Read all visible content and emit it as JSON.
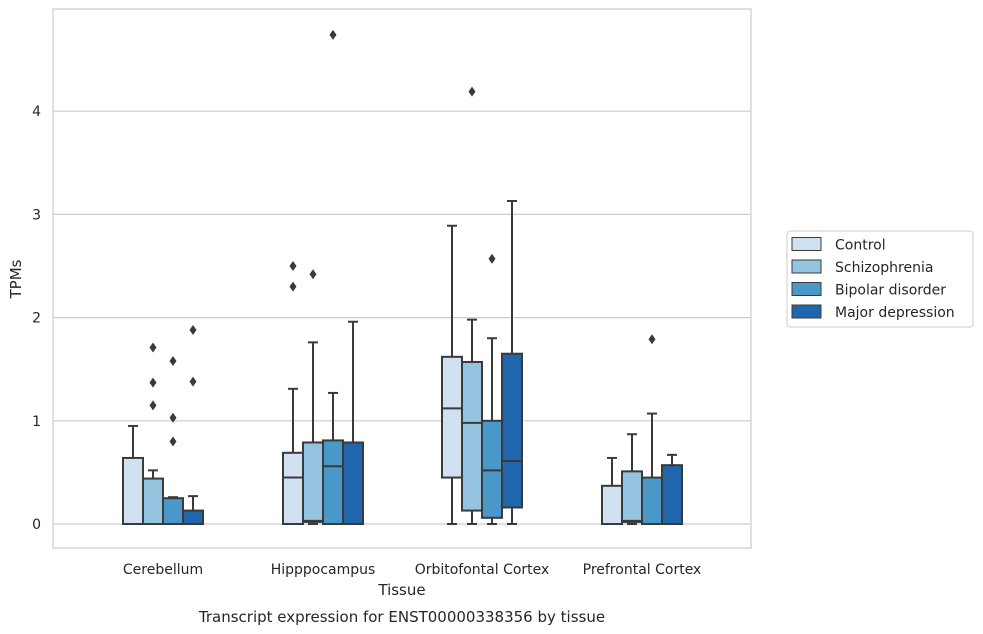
{
  "chart_data": {
    "type": "box",
    "title": "",
    "caption": "Transcript expression for ENST00000338356 by tissue",
    "xlabel": "Tissue",
    "ylabel": "TPMs",
    "ylim": [
      -0.22,
      5.0
    ],
    "yticks": [
      "0",
      "1",
      "2",
      "3",
      "4"
    ],
    "grid": "horizontal",
    "legend_position": "right",
    "categories": [
      "Cerebellum",
      "Hipppocampus",
      "Orbitofontal Cortex",
      "Prefrontal Cortex"
    ],
    "series": [
      {
        "name": "Control",
        "color": "#d0e1f2",
        "boxes": [
          {
            "whislo": 0,
            "q1": 0,
            "med": 0,
            "q3": 0.64,
            "whishi": 0.95,
            "fliers": []
          },
          {
            "whislo": 0,
            "q1": 0,
            "med": 0.45,
            "q3": 0.69,
            "whishi": 1.31,
            "fliers": [
              2.3,
              2.5
            ]
          },
          {
            "whislo": 0,
            "q1": 0.45,
            "med": 1.12,
            "q3": 1.62,
            "whishi": 2.89,
            "fliers": []
          },
          {
            "whislo": 0,
            "q1": 0,
            "med": 0,
            "q3": 0.37,
            "whishi": 0.64,
            "fliers": []
          }
        ]
      },
      {
        "name": "Schizophrenia",
        "color": "#94c4df",
        "boxes": [
          {
            "whislo": 0,
            "q1": 0,
            "med": 0,
            "q3": 0.44,
            "whishi": 0.52,
            "fliers": [
              1.15,
              1.37,
              1.71
            ]
          },
          {
            "whislo": 0,
            "q1": 0.02,
            "med": 0.03,
            "q3": 0.79,
            "whishi": 1.76,
            "fliers": [
              2.42
            ]
          },
          {
            "whislo": 0,
            "q1": 0.13,
            "med": 0.98,
            "q3": 1.57,
            "whishi": 1.98,
            "fliers": [
              4.19
            ]
          },
          {
            "whislo": 0,
            "q1": 0.02,
            "med": 0.03,
            "q3": 0.51,
            "whishi": 0.87,
            "fliers": []
          }
        ]
      },
      {
        "name": "Bipolar disorder",
        "color": "#4a98c9",
        "boxes": [
          {
            "whislo": 0,
            "q1": 0,
            "med": 0,
            "q3": 0.25,
            "whishi": 0.26,
            "fliers": [
              0.8,
              1.03,
              1.58
            ]
          },
          {
            "whislo": 0,
            "q1": 0,
            "med": 0.56,
            "q3": 0.81,
            "whishi": 1.27,
            "fliers": [
              4.74
            ]
          },
          {
            "whislo": 0,
            "q1": 0.06,
            "med": 0.52,
            "q3": 1.0,
            "whishi": 1.8,
            "fliers": [
              2.57
            ]
          },
          {
            "whislo": 0,
            "q1": 0,
            "med": 0,
            "q3": 0.45,
            "whishi": 1.07,
            "fliers": [
              1.79
            ]
          }
        ]
      },
      {
        "name": "Major depression",
        "color": "#2066ac",
        "boxes": [
          {
            "whislo": 0,
            "q1": 0,
            "med": 0,
            "q3": 0.13,
            "whishi": 0.27,
            "fliers": [
              1.38,
              1.88
            ]
          },
          {
            "whislo": 0,
            "q1": 0,
            "med": 0,
            "q3": 0.79,
            "whishi": 1.96,
            "fliers": []
          },
          {
            "whislo": 0,
            "q1": 0.16,
            "med": 0.61,
            "q3": 1.65,
            "whishi": 3.13,
            "fliers": []
          },
          {
            "whislo": 0,
            "q1": 0,
            "med": 0,
            "q3": 0.57,
            "whishi": 0.67,
            "fliers": []
          }
        ]
      }
    ]
  }
}
